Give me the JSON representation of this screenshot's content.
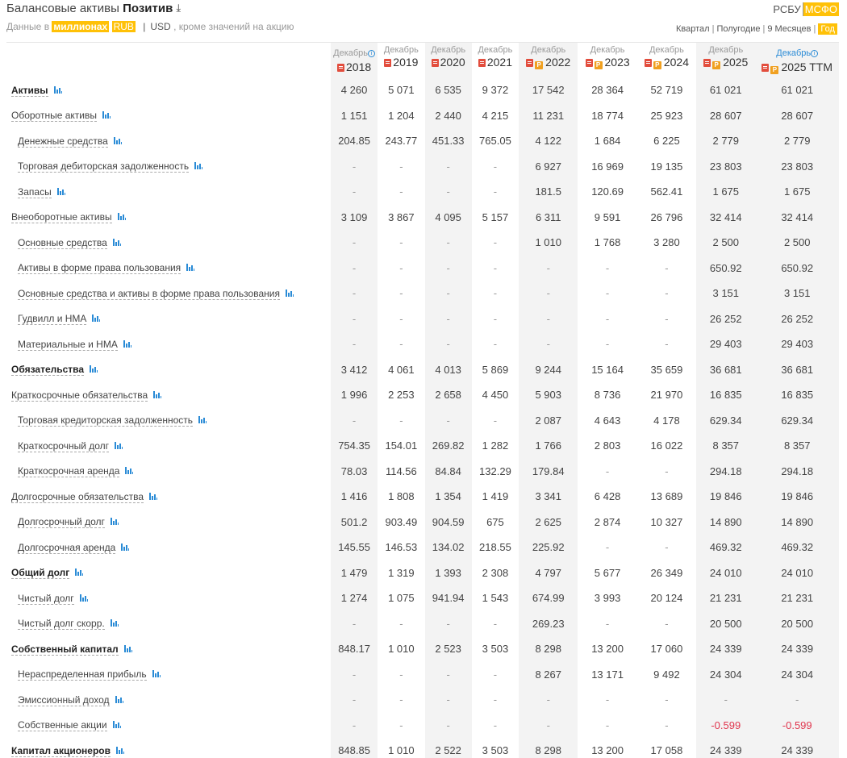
{
  "header": {
    "title_prefix": "Балансовые активы",
    "company": "Позитив",
    "download_icon": "download-icon",
    "sub_prefix": "Данные в",
    "units": "миллионах",
    "currency_rub": "RUB",
    "currency_sep": "|",
    "currency_usd": "USD",
    "sub_suffix": ", кроме значений на акцию"
  },
  "standards": {
    "rsbu": "РСБУ",
    "msfo": "МСФО"
  },
  "periods": [
    "Квартал",
    "Полугодие",
    "9 Месяцев",
    "Год"
  ],
  "columns": [
    {
      "month": "Декабрь",
      "year": "2018",
      "pdf": true,
      "pres": false,
      "info": true
    },
    {
      "month": "Декабрь",
      "year": "2019",
      "pdf": true,
      "pres": false,
      "info": false
    },
    {
      "month": "Декабрь",
      "year": "2020",
      "pdf": true,
      "pres": false,
      "info": false
    },
    {
      "month": "Декабрь",
      "year": "2021",
      "pdf": true,
      "pres": false,
      "info": false
    },
    {
      "month": "Декабрь",
      "year": "2022",
      "pdf": true,
      "pres": true,
      "info": false
    },
    {
      "month": "Декабрь",
      "year": "2023",
      "pdf": true,
      "pres": true,
      "info": false
    },
    {
      "month": "Декабрь",
      "year": "2024",
      "pdf": true,
      "pres": true,
      "info": false
    },
    {
      "month": "Декабрь",
      "year": "2025",
      "pdf": true,
      "pres": true,
      "info": false
    },
    {
      "month": "Декабрь",
      "year": "2025 TTM",
      "pdf": true,
      "pres": true,
      "info": true,
      "ttm": true
    }
  ],
  "rows": [
    {
      "label": "Активы",
      "level": 0,
      "bold": true,
      "values": [
        "4 260",
        "5 071",
        "6 535",
        "9 372",
        "17 542",
        "28 364",
        "52 719",
        "61 021",
        "61 021"
      ]
    },
    {
      "label": "Оборотные активы",
      "level": 0,
      "bold": false,
      "values": [
        "1 151",
        "1 204",
        "2 440",
        "4 215",
        "11 231",
        "18 774",
        "25 923",
        "28 607",
        "28 607"
      ]
    },
    {
      "label": "Денежные средства",
      "level": 1,
      "bold": false,
      "values": [
        "204.85",
        "243.77",
        "451.33",
        "765.05",
        "4 122",
        "1 684",
        "6 225",
        "2 779",
        "2 779"
      ]
    },
    {
      "label": "Торговая дебиторская задолженность",
      "level": 1,
      "bold": false,
      "values": [
        "-",
        "-",
        "-",
        "-",
        "6 927",
        "16 969",
        "19 135",
        "23 803",
        "23 803"
      ]
    },
    {
      "label": "Запасы",
      "level": 1,
      "bold": false,
      "values": [
        "-",
        "-",
        "-",
        "-",
        "181.5",
        "120.69",
        "562.41",
        "1 675",
        "1 675"
      ]
    },
    {
      "label": "Внеоборотные активы",
      "level": 0,
      "bold": false,
      "values": [
        "3 109",
        "3 867",
        "4 095",
        "5 157",
        "6 311",
        "9 591",
        "26 796",
        "32 414",
        "32 414"
      ]
    },
    {
      "label": "Основные средства",
      "level": 1,
      "bold": false,
      "values": [
        "-",
        "-",
        "-",
        "-",
        "1 010",
        "1 768",
        "3 280",
        "2 500",
        "2 500"
      ]
    },
    {
      "label": "Активы в форме права пользования",
      "level": 1,
      "bold": false,
      "values": [
        "-",
        "-",
        "-",
        "-",
        "-",
        "-",
        "-",
        "650.92",
        "650.92"
      ]
    },
    {
      "label": "Основные средства и активы в форме права пользования",
      "level": 1,
      "bold": false,
      "values": [
        "-",
        "-",
        "-",
        "-",
        "-",
        "-",
        "-",
        "3 151",
        "3 151"
      ]
    },
    {
      "label": "Гудвилл и НМА",
      "level": 1,
      "bold": false,
      "values": [
        "-",
        "-",
        "-",
        "-",
        "-",
        "-",
        "-",
        "26 252",
        "26 252"
      ]
    },
    {
      "label": "Материальные и НМА",
      "level": 1,
      "bold": false,
      "values": [
        "-",
        "-",
        "-",
        "-",
        "-",
        "-",
        "-",
        "29 403",
        "29 403"
      ]
    },
    {
      "label": "Обязательства",
      "level": 0,
      "bold": true,
      "values": [
        "3 412",
        "4 061",
        "4 013",
        "5 869",
        "9 244",
        "15 164",
        "35 659",
        "36 681",
        "36 681"
      ]
    },
    {
      "label": "Краткосрочные обязательства",
      "level": 0,
      "bold": false,
      "values": [
        "1 996",
        "2 253",
        "2 658",
        "4 450",
        "5 903",
        "8 736",
        "21 970",
        "16 835",
        "16 835"
      ]
    },
    {
      "label": "Торговая кредиторская задолженность",
      "level": 1,
      "bold": false,
      "values": [
        "-",
        "-",
        "-",
        "-",
        "2 087",
        "4 643",
        "4 178",
        "629.34",
        "629.34"
      ]
    },
    {
      "label": "Краткосрочный долг",
      "level": 1,
      "bold": false,
      "values": [
        "754.35",
        "154.01",
        "269.82",
        "1 282",
        "1 766",
        "2 803",
        "16 022",
        "8 357",
        "8 357"
      ]
    },
    {
      "label": "Краткосрочная аренда",
      "level": 1,
      "bold": false,
      "values": [
        "78.03",
        "114.56",
        "84.84",
        "132.29",
        "179.84",
        "-",
        "-",
        "294.18",
        "294.18"
      ]
    },
    {
      "label": "Долгосрочные обязательства",
      "level": 0,
      "bold": false,
      "values": [
        "1 416",
        "1 808",
        "1 354",
        "1 419",
        "3 341",
        "6 428",
        "13 689",
        "19 846",
        "19 846"
      ]
    },
    {
      "label": "Долгосрочный долг",
      "level": 1,
      "bold": false,
      "values": [
        "501.2",
        "903.49",
        "904.59",
        "675",
        "2 625",
        "2 874",
        "10 327",
        "14 890",
        "14 890"
      ]
    },
    {
      "label": "Долгосрочная аренда",
      "level": 1,
      "bold": false,
      "values": [
        "145.55",
        "146.53",
        "134.02",
        "218.55",
        "225.92",
        "-",
        "-",
        "469.32",
        "469.32"
      ]
    },
    {
      "label": "Общий долг",
      "level": 0,
      "bold": true,
      "values": [
        "1 479",
        "1 319",
        "1 393",
        "2 308",
        "4 797",
        "5 677",
        "26 349",
        "24 010",
        "24 010"
      ]
    },
    {
      "label": "Чистый долг",
      "level": 1,
      "bold": false,
      "values": [
        "1 274",
        "1 075",
        "941.94",
        "1 543",
        "674.99",
        "3 993",
        "20 124",
        "21 231",
        "21 231"
      ]
    },
    {
      "label": "Чистый долг скорр.",
      "level": 1,
      "bold": false,
      "values": [
        "-",
        "-",
        "-",
        "-",
        "269.23",
        "-",
        "-",
        "20 500",
        "20 500"
      ]
    },
    {
      "label": "Собственный капитал",
      "level": 0,
      "bold": true,
      "values": [
        "848.17",
        "1 010",
        "2 523",
        "3 503",
        "8 298",
        "13 200",
        "17 060",
        "24 339",
        "24 339"
      ]
    },
    {
      "label": "Нераспределенная прибыль",
      "level": 1,
      "bold": false,
      "values": [
        "-",
        "-",
        "-",
        "-",
        "8 267",
        "13 171",
        "9 492",
        "24 304",
        "24 304"
      ]
    },
    {
      "label": "Эмиссионный доход",
      "level": 1,
      "bold": false,
      "values": [
        "-",
        "-",
        "-",
        "-",
        "-",
        "-",
        "-",
        "-",
        "-"
      ]
    },
    {
      "label": "Собственные акции",
      "level": 1,
      "bold": false,
      "values": [
        "-",
        "-",
        "-",
        "-",
        "-",
        "-",
        "-",
        "-0.599",
        "-0.599"
      ]
    },
    {
      "label": "Капитал акционеров",
      "level": 0,
      "bold": true,
      "values": [
        "848.85",
        "1 010",
        "2 522",
        "3 503",
        "8 298",
        "13 200",
        "17 058",
        "24 339",
        "24 339"
      ]
    }
  ],
  "colors": {
    "accent": "#ffc107",
    "link": "#2a8bd6",
    "negative": "#e0364e",
    "alt_column": "#f3f3f3"
  }
}
